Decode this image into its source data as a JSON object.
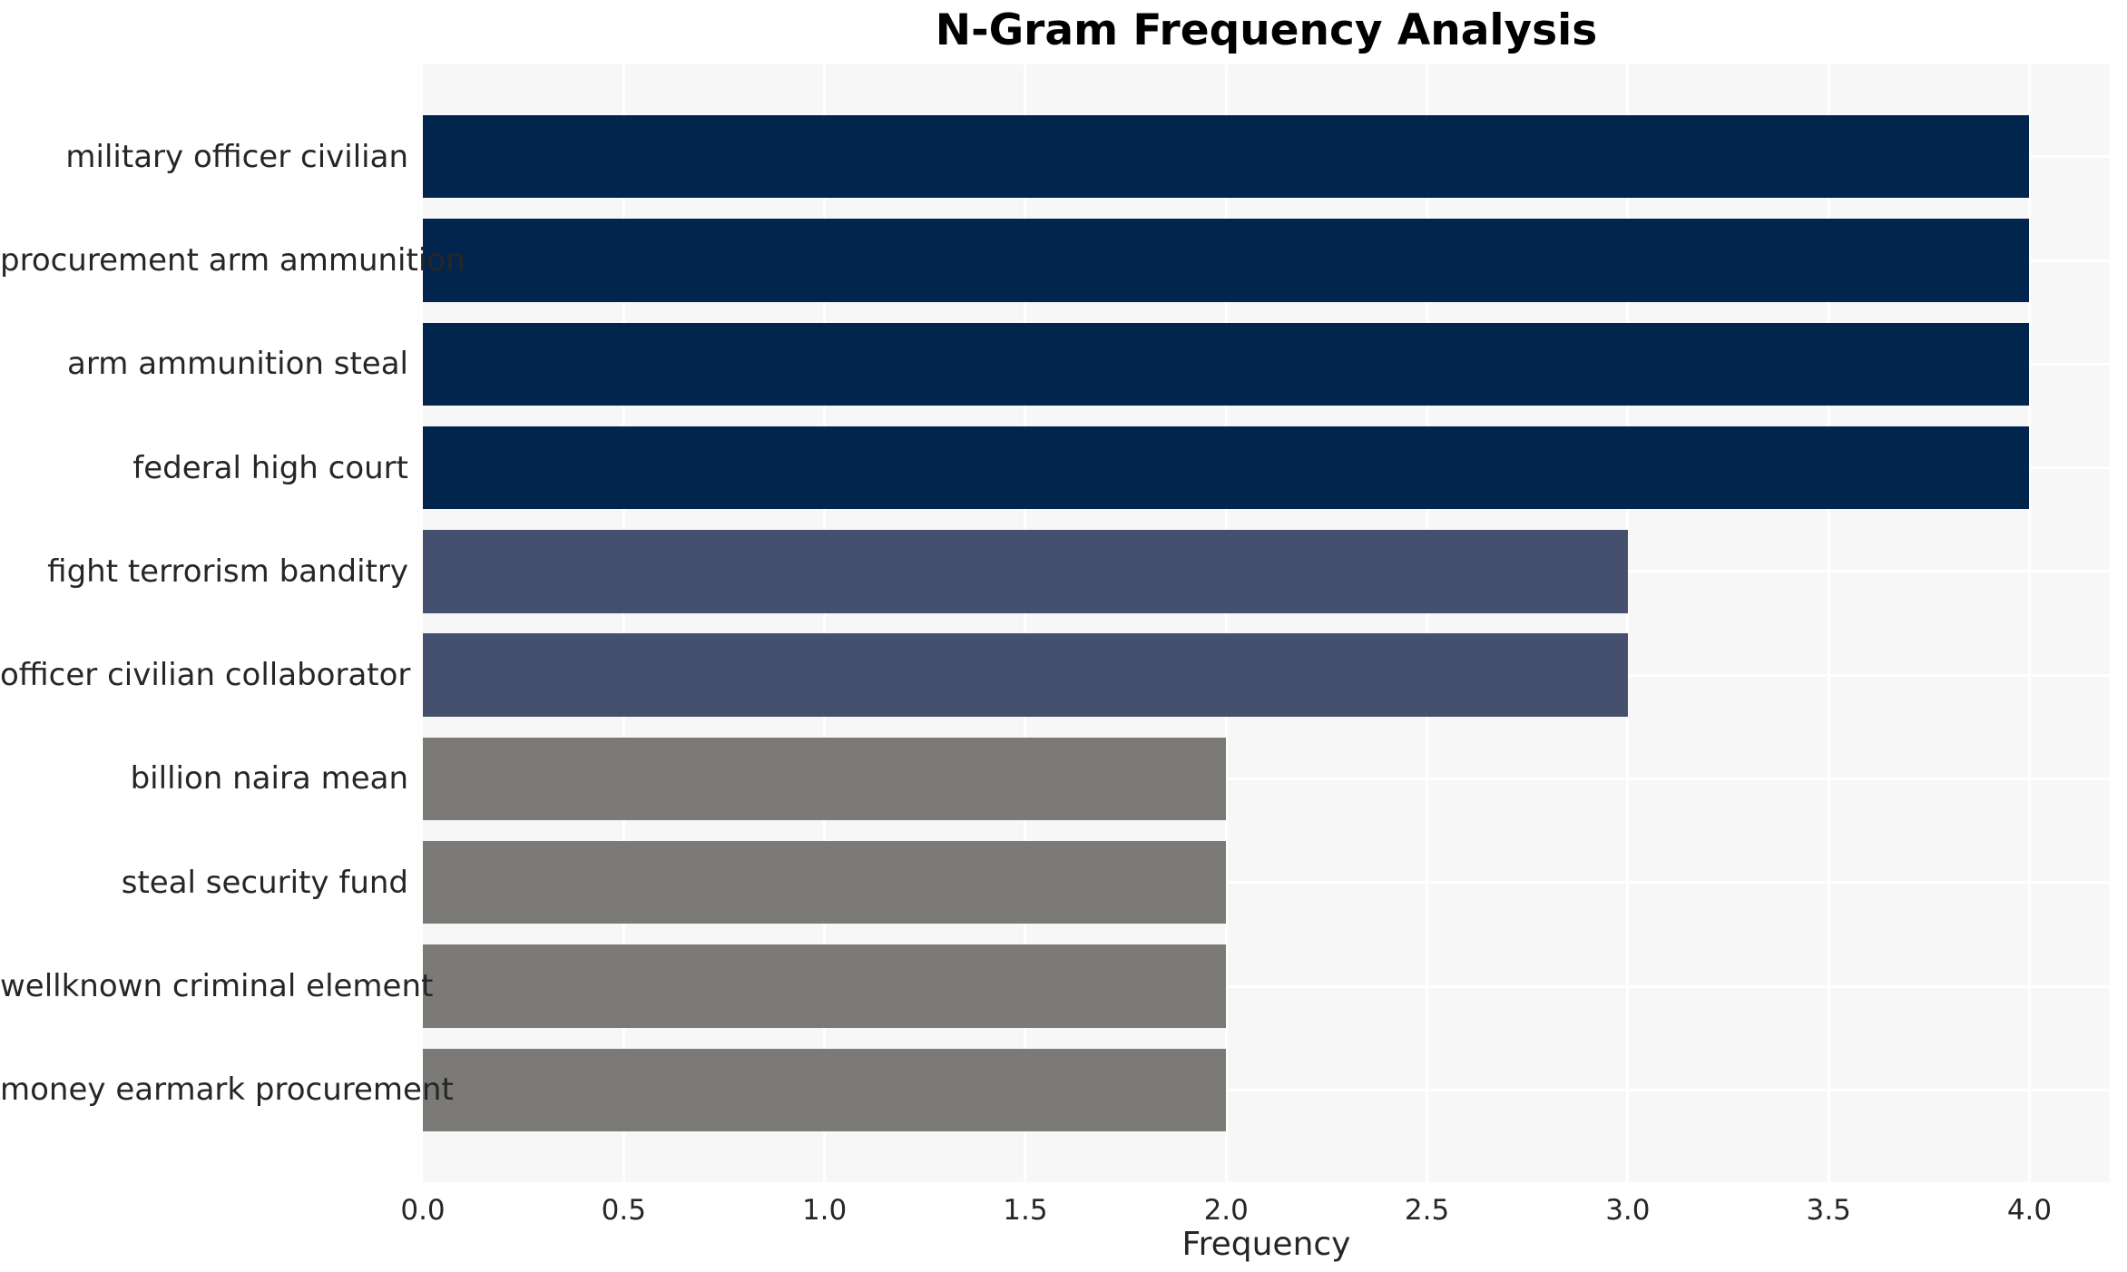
{
  "chart_data": {
    "type": "bar",
    "orientation": "horizontal",
    "title": "N-Gram Frequency Analysis",
    "xlabel": "Frequency",
    "ylabel": "",
    "categories": [
      "military officer civilian",
      "procurement arm ammunition",
      "arm ammunition steal",
      "federal high court",
      "fight terrorism banditry",
      "officer civilian collaborator",
      "billion naira mean",
      "steal security fund",
      "wellknown criminal element",
      "money earmark procurement"
    ],
    "values": [
      4,
      4,
      4,
      4,
      3,
      3,
      2,
      2,
      2,
      2
    ],
    "bar_colors": [
      "#02254d",
      "#02254d",
      "#02254d",
      "#02254d",
      "#45506e",
      "#45506e",
      "#7b7a77",
      "#7b7a77",
      "#7b7a77",
      "#7b7a77"
    ],
    "xlim": [
      0,
      4.2
    ],
    "xticks": [
      0.0,
      0.5,
      1.0,
      1.5,
      2.0,
      2.5,
      3.0,
      3.5,
      4.0
    ],
    "xtick_labels": [
      "0.0",
      "0.5",
      "1.0",
      "1.5",
      "2.0",
      "2.5",
      "3.0",
      "3.5",
      "4.0"
    ],
    "grid": true,
    "legend": "none"
  },
  "style": {
    "plot_background": "#f7f7f7",
    "grid_color": "#ffffff",
    "text_color": "#262626",
    "title_color": "#000000",
    "page_background": "#ffffff",
    "color_for_value_4": "#02254d",
    "color_for_value_3": "#45506e",
    "color_for_value_2": "#7b7a77"
  }
}
